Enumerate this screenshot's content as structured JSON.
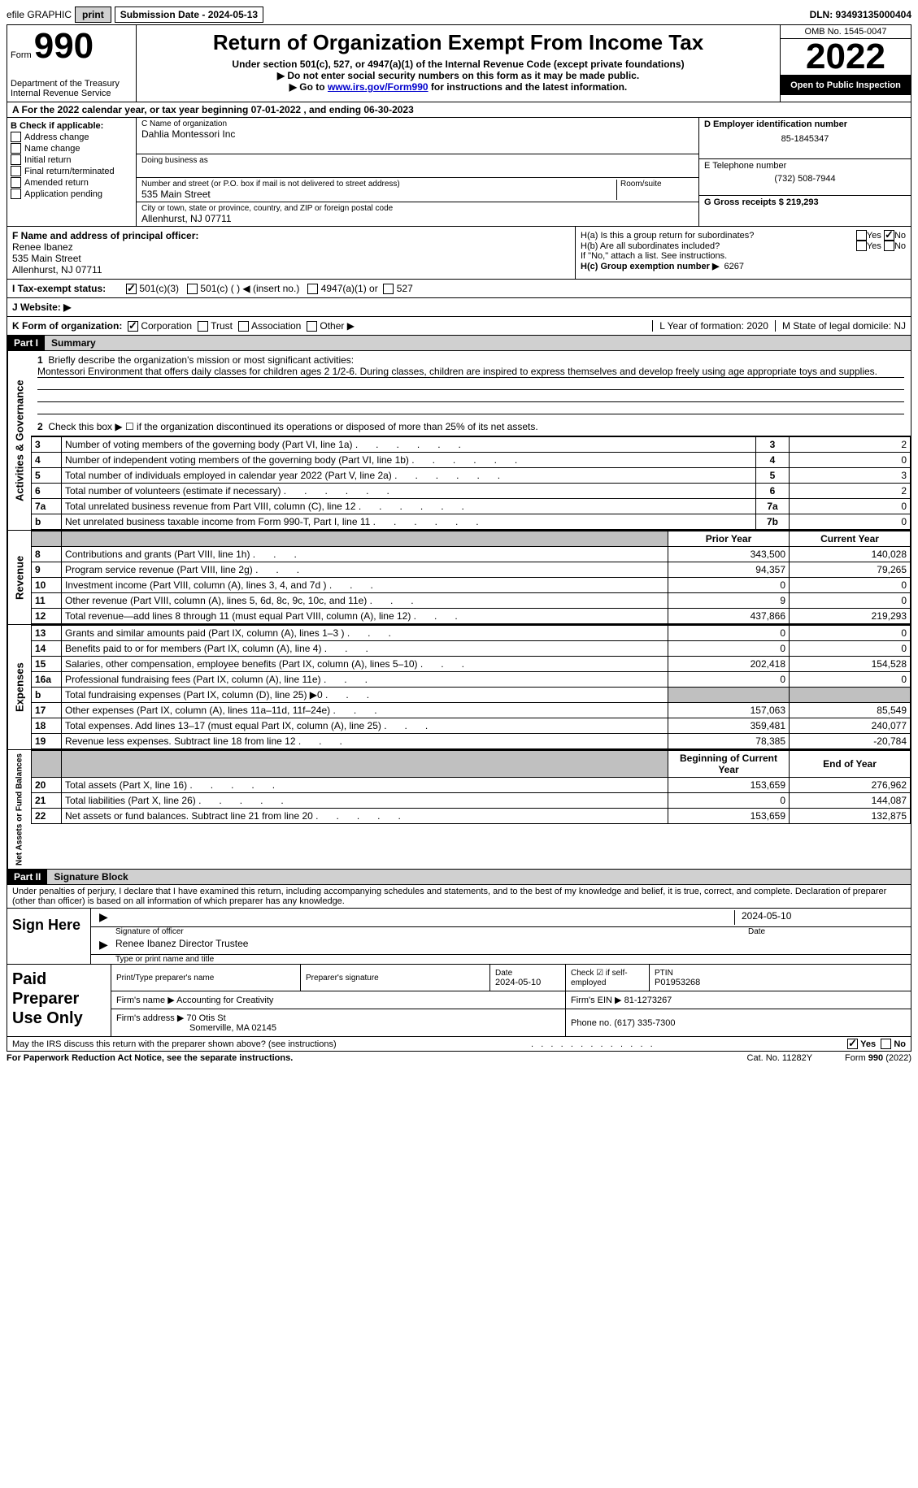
{
  "topbar": {
    "efile_label": "efile GRAPHIC",
    "print_btn": "print",
    "sub_date_label": "Submission Date - 2024-05-13",
    "dln_label": "DLN: 93493135000404"
  },
  "header": {
    "form_label": "Form",
    "form_number": "990",
    "dept_label": "Department of the Treasury",
    "irs_label": "Internal Revenue Service",
    "title": "Return of Organization Exempt From Income Tax",
    "subtitle": "Under section 501(c), 527, or 4947(a)(1) of the Internal Revenue Code (except private foundations)",
    "note1": "▶ Do not enter social security numbers on this form as it may be made public.",
    "note2_pre": "▶ Go to ",
    "note2_link": "www.irs.gov/Form990",
    "note2_post": " for instructions and the latest information.",
    "omb": "OMB No. 1545-0047",
    "year": "2022",
    "open": "Open to Public Inspection"
  },
  "section_a": {
    "cal_year": "A For the 2022 calendar year, or tax year beginning 07-01-2022    , and ending 06-30-2023",
    "b_label": "B Check if applicable:",
    "b_opts": [
      "Address change",
      "Name change",
      "Initial return",
      "Final return/terminated",
      "Amended return",
      "Application pending"
    ],
    "c_name_label": "C Name of organization",
    "c_name": "Dahlia Montessori Inc",
    "dba_label": "Doing business as",
    "addr_label": "Number and street (or P.O. box if mail is not delivered to street address)",
    "room_label": "Room/suite",
    "addr": "535 Main Street",
    "city_label": "City or town, state or province, country, and ZIP or foreign postal code",
    "city": "Allenhurst, NJ  07711",
    "d_label": "D Employer identification number",
    "d_val": "85-1845347",
    "e_label": "E Telephone number",
    "e_val": "(732) 508-7944",
    "g_label": "G Gross receipts $ 219,293"
  },
  "section_fg": {
    "f_label": "F Name and address of principal officer:",
    "f_name": "Renee Ibanez",
    "f_addr1": "535 Main Street",
    "f_addr2": "Allenhurst, NJ  07711",
    "ha_label": "H(a)  Is this a group return for subordinates?",
    "hb_label": "H(b)  Are all subordinates included?",
    "hb_note": "If \"No,\" attach a list. See instructions.",
    "hc_label": "H(c)  Group exemption number ▶",
    "hc_val": "6267",
    "yes": "Yes",
    "no": "No"
  },
  "section_i": {
    "i_label": "I   Tax-exempt status:",
    "opt1": "501(c)(3)",
    "opt2": "501(c) (   ) ◀ (insert no.)",
    "opt3": "4947(a)(1) or",
    "opt4": "527"
  },
  "section_j": {
    "j_label": "J   Website: ▶"
  },
  "section_k": {
    "k_label": "K Form of organization:",
    "opts": [
      "Corporation",
      "Trust",
      "Association",
      "Other ▶"
    ],
    "l_label": "L Year of formation: 2020",
    "m_label": "M State of legal domicile: NJ"
  },
  "part1": {
    "header": "Part I",
    "title": "Summary",
    "line1_label": "Briefly describe the organization's mission or most significant activities:",
    "line1_text": "Montessori Environment that offers daily classes for children ages 2 1/2-6. During classes, children are inspired to express themselves and develop freely using age appropriate toys and supplies.",
    "line2_label": "Check this box ▶ ☐ if the organization discontinued its operations or disposed of more than 25% of its net assets.",
    "vert_activities": "Activities & Governance",
    "vert_revenue": "Revenue",
    "vert_expenses": "Expenses",
    "vert_net": "Net Assets or Fund Balances",
    "col_prior": "Prior Year",
    "col_current": "Current Year",
    "col_begin": "Beginning of Current Year",
    "col_end": "End of Year",
    "gov_rows": [
      {
        "n": "3",
        "label": "Number of voting members of the governing body (Part VI, line 1a)",
        "ref": "3",
        "val": "2"
      },
      {
        "n": "4",
        "label": "Number of independent voting members of the governing body (Part VI, line 1b)",
        "ref": "4",
        "val": "0"
      },
      {
        "n": "5",
        "label": "Total number of individuals employed in calendar year 2022 (Part V, line 2a)",
        "ref": "5",
        "val": "3"
      },
      {
        "n": "6",
        "label": "Total number of volunteers (estimate if necessary)",
        "ref": "6",
        "val": "2"
      },
      {
        "n": "7a",
        "label": "Total unrelated business revenue from Part VIII, column (C), line 12",
        "ref": "7a",
        "val": "0"
      },
      {
        "n": "b",
        "label": "Net unrelated business taxable income from Form 990-T, Part I, line 11",
        "ref": "7b",
        "val": "0"
      }
    ],
    "rev_rows": [
      {
        "n": "8",
        "label": "Contributions and grants (Part VIII, line 1h)",
        "prior": "343,500",
        "curr": "140,028"
      },
      {
        "n": "9",
        "label": "Program service revenue (Part VIII, line 2g)",
        "prior": "94,357",
        "curr": "79,265"
      },
      {
        "n": "10",
        "label": "Investment income (Part VIII, column (A), lines 3, 4, and 7d )",
        "prior": "0",
        "curr": "0"
      },
      {
        "n": "11",
        "label": "Other revenue (Part VIII, column (A), lines 5, 6d, 8c, 9c, 10c, and 11e)",
        "prior": "9",
        "curr": "0"
      },
      {
        "n": "12",
        "label": "Total revenue—add lines 8 through 11 (must equal Part VIII, column (A), line 12)",
        "prior": "437,866",
        "curr": "219,293"
      }
    ],
    "exp_rows": [
      {
        "n": "13",
        "label": "Grants and similar amounts paid (Part IX, column (A), lines 1–3 )",
        "prior": "0",
        "curr": "0"
      },
      {
        "n": "14",
        "label": "Benefits paid to or for members (Part IX, column (A), line 4)",
        "prior": "0",
        "curr": "0"
      },
      {
        "n": "15",
        "label": "Salaries, other compensation, employee benefits (Part IX, column (A), lines 5–10)",
        "prior": "202,418",
        "curr": "154,528"
      },
      {
        "n": "16a",
        "label": "Professional fundraising fees (Part IX, column (A), line 11e)",
        "prior": "0",
        "curr": "0"
      },
      {
        "n": "b",
        "label": "Total fundraising expenses (Part IX, column (D), line 25) ▶0",
        "prior": "",
        "curr": "",
        "grey": true
      },
      {
        "n": "17",
        "label": "Other expenses (Part IX, column (A), lines 11a–11d, 11f–24e)",
        "prior": "157,063",
        "curr": "85,549"
      },
      {
        "n": "18",
        "label": "Total expenses. Add lines 13–17 (must equal Part IX, column (A), line 25)",
        "prior": "359,481",
        "curr": "240,077"
      },
      {
        "n": "19",
        "label": "Revenue less expenses. Subtract line 18 from line 12",
        "prior": "78,385",
        "curr": "-20,784"
      }
    ],
    "net_rows": [
      {
        "n": "20",
        "label": "Total assets (Part X, line 16)",
        "prior": "153,659",
        "curr": "276,962"
      },
      {
        "n": "21",
        "label": "Total liabilities (Part X, line 26)",
        "prior": "0",
        "curr": "144,087"
      },
      {
        "n": "22",
        "label": "Net assets or fund balances. Subtract line 21 from line 20",
        "prior": "153,659",
        "curr": "132,875"
      }
    ]
  },
  "part2": {
    "header": "Part II",
    "title": "Signature Block",
    "declaration": "Under penalties of perjury, I declare that I have examined this return, including accompanying schedules and statements, and to the best of my knowledge and belief, it is true, correct, and complete. Declaration of preparer (other than officer) is based on all information of which preparer has any knowledge.",
    "sign_here": "Sign Here",
    "sig_officer": "Signature of officer",
    "sig_date": "2024-05-10",
    "date_label": "Date",
    "officer_name": "Renee Ibanez  Director Trustee",
    "type_name_label": "Type or print name and title"
  },
  "paid": {
    "label": "Paid Preparer Use Only",
    "col_name": "Print/Type preparer's name",
    "col_sig": "Preparer's signature",
    "col_date": "Date",
    "date_val": "2024-05-10",
    "col_check": "Check ☑ if self-employed",
    "col_ptin": "PTIN",
    "ptin_val": "P01953268",
    "firm_name_label": "Firm's name      ▶",
    "firm_name": "Accounting for Creativity",
    "firm_ein_label": "Firm's EIN ▶",
    "firm_ein": "81-1273267",
    "firm_addr_label": "Firm's address ▶",
    "firm_addr": "70 Otis St",
    "firm_city": "Somerville, MA  02145",
    "phone_label": "Phone no.",
    "phone": "(617) 335-7300"
  },
  "footer": {
    "discuss": "May the IRS discuss this return with the preparer shown above? (see instructions)",
    "yes": "Yes",
    "no": "No",
    "paperwork": "For Paperwork Reduction Act Notice, see the separate instructions.",
    "cat": "Cat. No. 11282Y",
    "form": "Form 990 (2022)"
  },
  "colors": {
    "black": "#000000",
    "grey_btn": "#d0d0d0",
    "grey_cell": "#c0c0c0",
    "link": "#0000cc"
  }
}
